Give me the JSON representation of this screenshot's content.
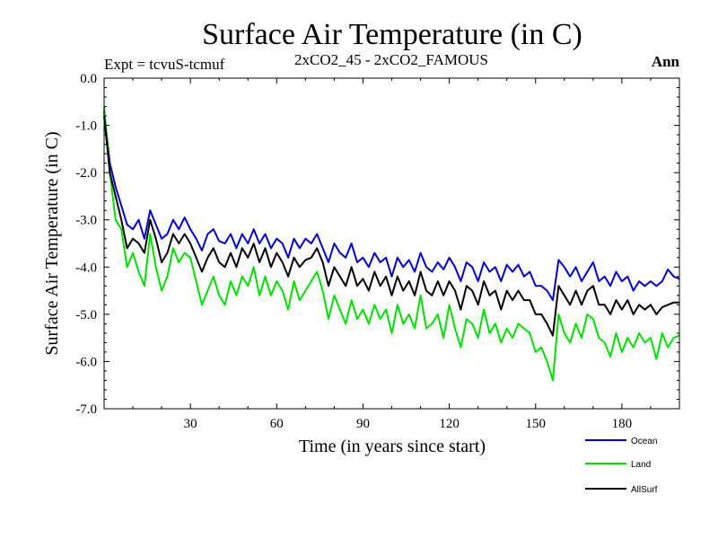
{
  "chart_data": {
    "type": "line",
    "title": "Surface Air Temperature (in C)",
    "left_label": "Expt = tcvuS-tcmuf",
    "center_label": "2xCO2_45 - 2xCO2_FAMOUS",
    "right_label": "Ann",
    "xlabel": "Time (in years since start)",
    "ylabel": "Surface Air Temperature (in C)",
    "xlim": [
      0,
      200
    ],
    "ylim": [
      -7.0,
      0.0
    ],
    "x_ticks": [
      30,
      60,
      90,
      120,
      150,
      180
    ],
    "x_tick_labels": [
      "30",
      "60",
      "90",
      "120",
      "150",
      "180"
    ],
    "y_ticks": [
      0,
      -1,
      -2,
      -3,
      -4,
      -5,
      -6,
      -7
    ],
    "y_tick_labels": [
      "0.0",
      "-1.0",
      "-2.0",
      "-3.0",
      "-4.0",
      "-5.0",
      "-6.0",
      "-7.0"
    ],
    "legend_position": "bottom-right, below plot",
    "series": [
      {
        "name": "Ocean",
        "color": "#0000cc",
        "points": [
          [
            0,
            -0.7
          ],
          [
            2,
            -1.8
          ],
          [
            4,
            -2.3
          ],
          [
            6,
            -2.7
          ],
          [
            8,
            -3.1
          ],
          [
            10,
            -3.2
          ],
          [
            12,
            -3.0
          ],
          [
            14,
            -3.4
          ],
          [
            16,
            -2.8
          ],
          [
            18,
            -3.1
          ],
          [
            20,
            -3.4
          ],
          [
            22,
            -3.3
          ],
          [
            24,
            -3.0
          ],
          [
            26,
            -3.2
          ],
          [
            28,
            -2.95
          ],
          [
            30,
            -3.2
          ],
          [
            32,
            -3.4
          ],
          [
            34,
            -3.65
          ],
          [
            36,
            -3.3
          ],
          [
            38,
            -3.2
          ],
          [
            40,
            -3.45
          ],
          [
            42,
            -3.5
          ],
          [
            44,
            -3.3
          ],
          [
            46,
            -3.6
          ],
          [
            48,
            -3.3
          ],
          [
            50,
            -3.5
          ],
          [
            52,
            -3.2
          ],
          [
            54,
            -3.5
          ],
          [
            56,
            -3.3
          ],
          [
            58,
            -3.6
          ],
          [
            60,
            -3.4
          ],
          [
            62,
            -3.5
          ],
          [
            64,
            -3.8
          ],
          [
            66,
            -3.4
          ],
          [
            68,
            -3.6
          ],
          [
            70,
            -3.4
          ],
          [
            72,
            -3.5
          ],
          [
            74,
            -3.3
          ],
          [
            76,
            -3.6
          ],
          [
            78,
            -3.9
          ],
          [
            80,
            -3.5
          ],
          [
            82,
            -3.7
          ],
          [
            84,
            -3.8
          ],
          [
            86,
            -3.5
          ],
          [
            88,
            -3.9
          ],
          [
            90,
            -3.8
          ],
          [
            92,
            -4.0
          ],
          [
            94,
            -3.7
          ],
          [
            96,
            -3.9
          ],
          [
            98,
            -3.8
          ],
          [
            100,
            -4.2
          ],
          [
            102,
            -3.8
          ],
          [
            104,
            -4.0
          ],
          [
            106,
            -3.85
          ],
          [
            108,
            -4.1
          ],
          [
            110,
            -3.7
          ],
          [
            112,
            -4.0
          ],
          [
            114,
            -4.1
          ],
          [
            116,
            -3.9
          ],
          [
            118,
            -4.05
          ],
          [
            120,
            -3.8
          ],
          [
            122,
            -4.0
          ],
          [
            124,
            -4.3
          ],
          [
            126,
            -3.9
          ],
          [
            128,
            -4.0
          ],
          [
            130,
            -4.3
          ],
          [
            132,
            -3.9
          ],
          [
            134,
            -4.1
          ],
          [
            136,
            -4.0
          ],
          [
            138,
            -4.3
          ],
          [
            140,
            -3.95
          ],
          [
            142,
            -4.1
          ],
          [
            144,
            -3.95
          ],
          [
            146,
            -4.2
          ],
          [
            148,
            -4.1
          ],
          [
            150,
            -4.4
          ],
          [
            152,
            -4.4
          ],
          [
            154,
            -4.5
          ],
          [
            156,
            -4.7
          ],
          [
            158,
            -3.85
          ],
          [
            160,
            -4.0
          ],
          [
            162,
            -4.2
          ],
          [
            164,
            -4.0
          ],
          [
            166,
            -4.3
          ],
          [
            168,
            -4.1
          ],
          [
            170,
            -3.9
          ],
          [
            172,
            -4.3
          ],
          [
            174,
            -4.2
          ],
          [
            176,
            -4.4
          ],
          [
            178,
            -4.1
          ],
          [
            180,
            -4.3
          ],
          [
            182,
            -4.2
          ],
          [
            184,
            -4.5
          ],
          [
            186,
            -4.3
          ],
          [
            188,
            -4.4
          ],
          [
            190,
            -4.3
          ],
          [
            192,
            -4.4
          ],
          [
            194,
            -4.3
          ],
          [
            196,
            -4.05
          ],
          [
            198,
            -4.2
          ],
          [
            200,
            -4.25
          ]
        ]
      },
      {
        "name": "Land",
        "color": "#00e000",
        "points": [
          [
            0,
            -0.6
          ],
          [
            2,
            -2.0
          ],
          [
            4,
            -3.0
          ],
          [
            6,
            -3.2
          ],
          [
            8,
            -4.0
          ],
          [
            10,
            -3.7
          ],
          [
            12,
            -4.1
          ],
          [
            14,
            -4.4
          ],
          [
            16,
            -3.3
          ],
          [
            18,
            -4.0
          ],
          [
            20,
            -4.5
          ],
          [
            22,
            -4.2
          ],
          [
            24,
            -3.6
          ],
          [
            26,
            -3.9
          ],
          [
            28,
            -3.7
          ],
          [
            30,
            -3.8
          ],
          [
            32,
            -4.3
          ],
          [
            34,
            -4.8
          ],
          [
            36,
            -4.5
          ],
          [
            38,
            -4.2
          ],
          [
            40,
            -4.6
          ],
          [
            42,
            -4.8
          ],
          [
            44,
            -4.3
          ],
          [
            46,
            -4.6
          ],
          [
            48,
            -4.2
          ],
          [
            50,
            -4.4
          ],
          [
            52,
            -4.0
          ],
          [
            54,
            -4.6
          ],
          [
            56,
            -4.2
          ],
          [
            58,
            -4.6
          ],
          [
            60,
            -4.3
          ],
          [
            62,
            -4.5
          ],
          [
            64,
            -4.9
          ],
          [
            66,
            -4.3
          ],
          [
            68,
            -4.7
          ],
          [
            70,
            -4.5
          ],
          [
            72,
            -4.3
          ],
          [
            74,
            -4.1
          ],
          [
            76,
            -4.5
          ],
          [
            78,
            -5.1
          ],
          [
            80,
            -4.6
          ],
          [
            82,
            -4.9
          ],
          [
            84,
            -5.2
          ],
          [
            86,
            -4.7
          ],
          [
            88,
            -5.1
          ],
          [
            90,
            -4.9
          ],
          [
            92,
            -5.2
          ],
          [
            94,
            -4.8
          ],
          [
            96,
            -5.1
          ],
          [
            98,
            -4.9
          ],
          [
            100,
            -5.4
          ],
          [
            102,
            -4.8
          ],
          [
            104,
            -5.2
          ],
          [
            106,
            -5.0
          ],
          [
            108,
            -5.3
          ],
          [
            110,
            -4.6
          ],
          [
            112,
            -5.3
          ],
          [
            114,
            -5.2
          ],
          [
            116,
            -5.0
          ],
          [
            118,
            -5.5
          ],
          [
            120,
            -4.8
          ],
          [
            122,
            -5.3
          ],
          [
            124,
            -5.7
          ],
          [
            126,
            -5.1
          ],
          [
            128,
            -5.2
          ],
          [
            130,
            -5.5
          ],
          [
            132,
            -4.9
          ],
          [
            134,
            -5.4
          ],
          [
            136,
            -5.2
          ],
          [
            138,
            -5.6
          ],
          [
            140,
            -5.3
          ],
          [
            142,
            -5.5
          ],
          [
            144,
            -5.2
          ],
          [
            146,
            -5.3
          ],
          [
            148,
            -5.4
          ],
          [
            150,
            -5.8
          ],
          [
            152,
            -5.7
          ],
          [
            154,
            -6.0
          ],
          [
            156,
            -6.4
          ],
          [
            158,
            -5.0
          ],
          [
            160,
            -5.4
          ],
          [
            162,
            -5.6
          ],
          [
            164,
            -5.2
          ],
          [
            166,
            -5.5
          ],
          [
            168,
            -5.0
          ],
          [
            170,
            -5.1
          ],
          [
            172,
            -5.5
          ],
          [
            174,
            -5.6
          ],
          [
            176,
            -5.9
          ],
          [
            178,
            -5.4
          ],
          [
            180,
            -5.8
          ],
          [
            182,
            -5.5
          ],
          [
            184,
            -5.7
          ],
          [
            186,
            -5.4
          ],
          [
            188,
            -5.6
          ],
          [
            190,
            -5.5
          ],
          [
            192,
            -5.95
          ],
          [
            194,
            -5.4
          ],
          [
            196,
            -5.7
          ],
          [
            198,
            -5.5
          ],
          [
            200,
            -5.45
          ]
        ]
      },
      {
        "name": "AllSurf",
        "color": "#000000",
        "points": [
          [
            0,
            -0.8
          ],
          [
            2,
            -2.0
          ],
          [
            4,
            -2.5
          ],
          [
            6,
            -3.0
          ],
          [
            8,
            -3.6
          ],
          [
            10,
            -3.4
          ],
          [
            12,
            -3.5
          ],
          [
            14,
            -3.7
          ],
          [
            16,
            -3.0
          ],
          [
            18,
            -3.4
          ],
          [
            20,
            -3.9
          ],
          [
            22,
            -3.7
          ],
          [
            24,
            -3.3
          ],
          [
            26,
            -3.5
          ],
          [
            28,
            -3.3
          ],
          [
            30,
            -3.5
          ],
          [
            32,
            -3.8
          ],
          [
            34,
            -4.1
          ],
          [
            36,
            -3.8
          ],
          [
            38,
            -3.6
          ],
          [
            40,
            -3.9
          ],
          [
            42,
            -4.0
          ],
          [
            44,
            -3.7
          ],
          [
            46,
            -4.0
          ],
          [
            48,
            -3.6
          ],
          [
            50,
            -3.8
          ],
          [
            52,
            -3.5
          ],
          [
            54,
            -3.9
          ],
          [
            56,
            -3.6
          ],
          [
            58,
            -4.0
          ],
          [
            60,
            -3.7
          ],
          [
            62,
            -3.9
          ],
          [
            64,
            -4.2
          ],
          [
            66,
            -3.8
          ],
          [
            68,
            -4.0
          ],
          [
            70,
            -3.85
          ],
          [
            72,
            -3.8
          ],
          [
            74,
            -3.6
          ],
          [
            76,
            -3.9
          ],
          [
            78,
            -4.4
          ],
          [
            80,
            -4.0
          ],
          [
            82,
            -4.2
          ],
          [
            84,
            -4.4
          ],
          [
            86,
            -4.0
          ],
          [
            88,
            -4.4
          ],
          [
            90,
            -4.25
          ],
          [
            92,
            -4.5
          ],
          [
            94,
            -4.1
          ],
          [
            96,
            -4.4
          ],
          [
            98,
            -4.2
          ],
          [
            100,
            -4.6
          ],
          [
            102,
            -4.2
          ],
          [
            104,
            -4.5
          ],
          [
            106,
            -4.3
          ],
          [
            108,
            -4.6
          ],
          [
            110,
            -4.1
          ],
          [
            112,
            -4.5
          ],
          [
            114,
            -4.6
          ],
          [
            116,
            -4.3
          ],
          [
            118,
            -4.6
          ],
          [
            120,
            -4.3
          ],
          [
            122,
            -4.5
          ],
          [
            124,
            -4.9
          ],
          [
            126,
            -4.4
          ],
          [
            128,
            -4.5
          ],
          [
            130,
            -4.8
          ],
          [
            132,
            -4.3
          ],
          [
            134,
            -4.6
          ],
          [
            136,
            -4.5
          ],
          [
            138,
            -4.9
          ],
          [
            140,
            -4.5
          ],
          [
            142,
            -4.7
          ],
          [
            144,
            -4.5
          ],
          [
            146,
            -4.7
          ],
          [
            148,
            -4.7
          ],
          [
            150,
            -5.0
          ],
          [
            152,
            -5.0
          ],
          [
            154,
            -5.2
          ],
          [
            156,
            -5.45
          ],
          [
            158,
            -4.4
          ],
          [
            160,
            -4.6
          ],
          [
            162,
            -4.8
          ],
          [
            164,
            -4.5
          ],
          [
            166,
            -4.8
          ],
          [
            168,
            -4.5
          ],
          [
            170,
            -4.4
          ],
          [
            172,
            -4.8
          ],
          [
            174,
            -4.8
          ],
          [
            176,
            -5.0
          ],
          [
            178,
            -4.7
          ],
          [
            180,
            -4.9
          ],
          [
            182,
            -4.7
          ],
          [
            184,
            -5.0
          ],
          [
            186,
            -4.8
          ],
          [
            188,
            -4.9
          ],
          [
            190,
            -4.8
          ],
          [
            192,
            -5.0
          ],
          [
            194,
            -4.85
          ],
          [
            196,
            -4.8
          ],
          [
            198,
            -4.75
          ],
          [
            200,
            -4.75
          ]
        ]
      }
    ]
  }
}
